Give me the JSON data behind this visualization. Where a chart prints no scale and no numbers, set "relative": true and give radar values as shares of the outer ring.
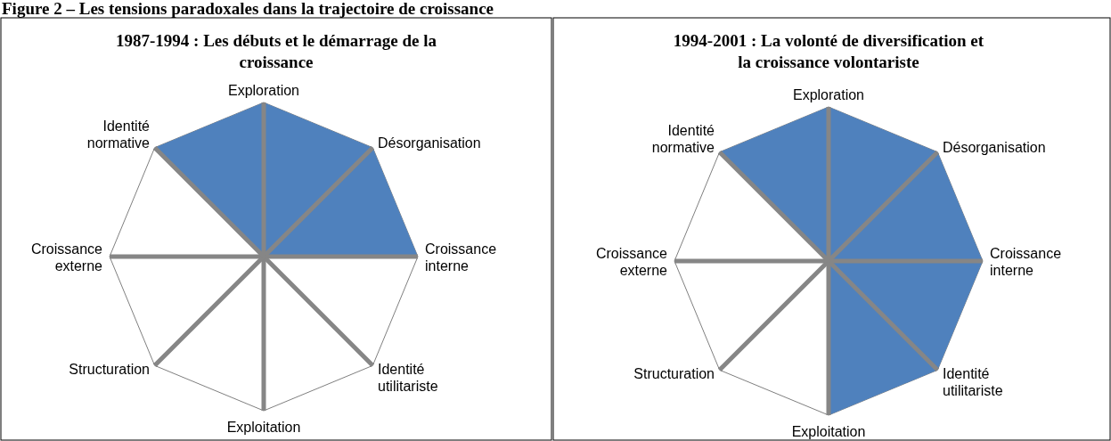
{
  "chart_data": [
    {
      "type": "radar",
      "title": "1987-1994 : Les débuts et le démarrage de la croissance",
      "annotations": [
        "Figure 2 – Les tensions paradoxales dans la trajectoire de croissance"
      ],
      "categories": [
        "Exploration",
        "Désorganisation",
        "Croissance interne",
        "Identité utilitariste",
        "Exploitation",
        "Structuration",
        "Croissance externe",
        "Identité normative"
      ],
      "relative": true,
      "series": [
        {
          "color": "#4f81bd",
          "values": [
            1,
            1,
            1,
            0,
            0,
            0,
            0,
            1
          ]
        }
      ]
    },
    {
      "type": "radar",
      "title": "1994-2001 : La volonté de diversification et la croissance volontariste",
      "categories": [
        "Exploration",
        "Désorganisation",
        "Croissance interne",
        "Identité utilitariste",
        "Exploitation",
        "Structuration",
        "Croissance externe",
        "Identité normative"
      ],
      "relative": true,
      "series": [
        {
          "color": "#4f81bd",
          "values": [
            1,
            1,
            1,
            1,
            1,
            0,
            0,
            1
          ]
        }
      ]
    }
  ]
}
